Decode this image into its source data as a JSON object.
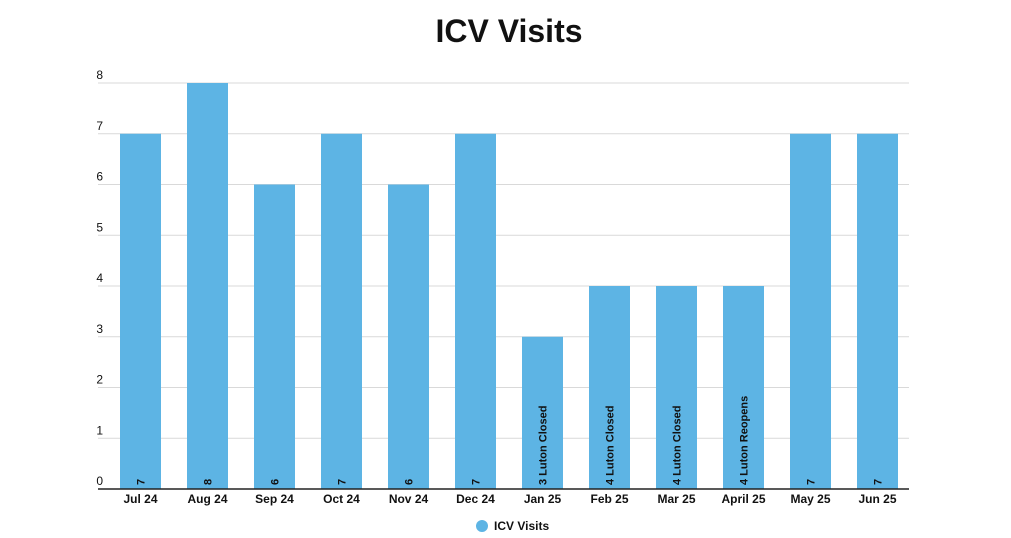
{
  "chart_data": {
    "type": "bar",
    "title": "ICV Visits",
    "categories": [
      "Jul 24",
      "Aug 24",
      "Sep 24",
      "Oct 24",
      "Nov 24",
      "Dec 24",
      "Jan 25",
      "Feb 25",
      "Mar 25",
      "April 25",
      "May 25",
      "Jun 25"
    ],
    "series": [
      {
        "name": "ICV Visits",
        "values": [
          7,
          8,
          6,
          7,
          6,
          7,
          3,
          4,
          4,
          4,
          7,
          7
        ],
        "color": "#5DB4E4"
      }
    ],
    "data_labels": [
      "7",
      "8",
      "6",
      "7",
      "6",
      "7",
      "3 Luton Closed",
      "4 Luton Closed",
      "4 Luton Closed",
      "4 Luton Reopens",
      "7",
      "7"
    ],
    "yticks": [
      "0",
      "1",
      "2",
      "3",
      "4",
      "5",
      "6",
      "7",
      "8"
    ],
    "ylim": [
      0,
      8
    ],
    "grid": true,
    "legend": "bottom-center"
  }
}
